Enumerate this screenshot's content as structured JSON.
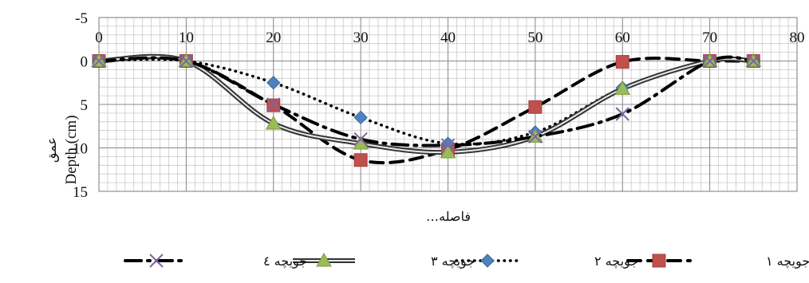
{
  "chart_data": {
    "type": "line",
    "xlabel": "فاصله…",
    "ylabel": "Depth (cm)",
    "ylabel_secondary": "عمق",
    "xlim": [
      0,
      80
    ],
    "ylim": [
      15,
      -5
    ],
    "x_ticks": [
      0,
      10,
      20,
      30,
      40,
      50,
      60,
      70,
      80
    ],
    "y_ticks": [
      -5,
      0,
      5,
      10,
      15
    ],
    "x_minor_step": 1,
    "y_minor_step": 1,
    "y_inverted": true,
    "grid": true,
    "legend_position": "bottom",
    "series": [
      {
        "name": "جویچه ۱",
        "marker": "square",
        "color": "#c0504d",
        "line": "long-dash",
        "x": [
          0,
          10,
          20,
          30,
          40,
          50,
          60,
          70,
          75
        ],
        "values": [
          0,
          0,
          5.1,
          11.4,
          10.2,
          5.3,
          0.1,
          0,
          0
        ]
      },
      {
        "name": "جویچه ۲",
        "marker": "diamond",
        "color": "#4f81bd",
        "line": "dotted",
        "x": [
          0,
          10,
          20,
          30,
          40,
          50,
          60,
          70,
          75
        ],
        "values": [
          0,
          0,
          2.5,
          6.5,
          9.5,
          8.2,
          3.1,
          0,
          0
        ]
      },
      {
        "name": "جویچه ۳",
        "marker": "triangle",
        "color": "#9bbb59",
        "line": "double",
        "x": [
          0,
          10,
          20,
          30,
          40,
          50,
          60,
          70,
          75
        ],
        "values": [
          0,
          0,
          7.2,
          9.5,
          10.5,
          8.7,
          3.2,
          0,
          0
        ]
      },
      {
        "name": "جویچه ٤",
        "marker": "x",
        "color": "#8064a2",
        "line": "dash-dot",
        "x": [
          0,
          10,
          20,
          30,
          40,
          50,
          60,
          70,
          75
        ],
        "values": [
          0,
          0,
          5.0,
          9.0,
          9.7,
          8.7,
          6.1,
          0,
          0
        ]
      }
    ]
  }
}
